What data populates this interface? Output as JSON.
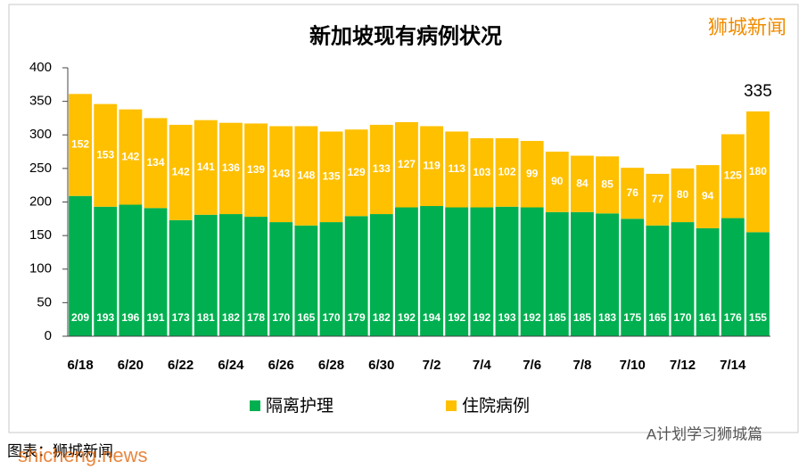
{
  "chart_data": {
    "type": "stacked_bar",
    "title": "新加坡现有病例状况",
    "categories": [
      "6/18",
      null,
      "6/20",
      null,
      "6/22",
      null,
      "6/24",
      null,
      "6/26",
      null,
      "6/28",
      null,
      "6/30",
      null,
      "7/2",
      null,
      "7/4",
      null,
      "7/6",
      null,
      "7/8",
      null,
      "7/10",
      null,
      "7/12",
      null,
      "7/14",
      null
    ],
    "series": [
      {
        "name": "隔离护理",
        "color": "#00b050",
        "values": [
          209,
          193,
          196,
          191,
          173,
          181,
          182,
          178,
          170,
          165,
          170,
          179,
          182,
          192,
          194,
          192,
          192,
          193,
          192,
          185,
          185,
          183,
          175,
          165,
          170,
          161,
          176,
          155
        ]
      },
      {
        "name": "住院病例",
        "color": "#ffc000",
        "values": [
          152,
          153,
          142,
          134,
          142,
          141,
          136,
          139,
          143,
          148,
          135,
          129,
          133,
          127,
          119,
          113,
          103,
          102,
          99,
          90,
          84,
          85,
          76,
          77,
          80,
          94,
          125,
          180
        ]
      }
    ],
    "annotation": "335",
    "ylim": [
      0,
      400
    ],
    "yticks": [
      0,
      50,
      100,
      150,
      200,
      250,
      300,
      350,
      400
    ],
    "grid": false,
    "legend": "bottom",
    "watermark": "狮城新闻",
    "source": "图表：狮城新闻",
    "site": "shicheng.news",
    "account": "A计划学习狮城篇"
  }
}
